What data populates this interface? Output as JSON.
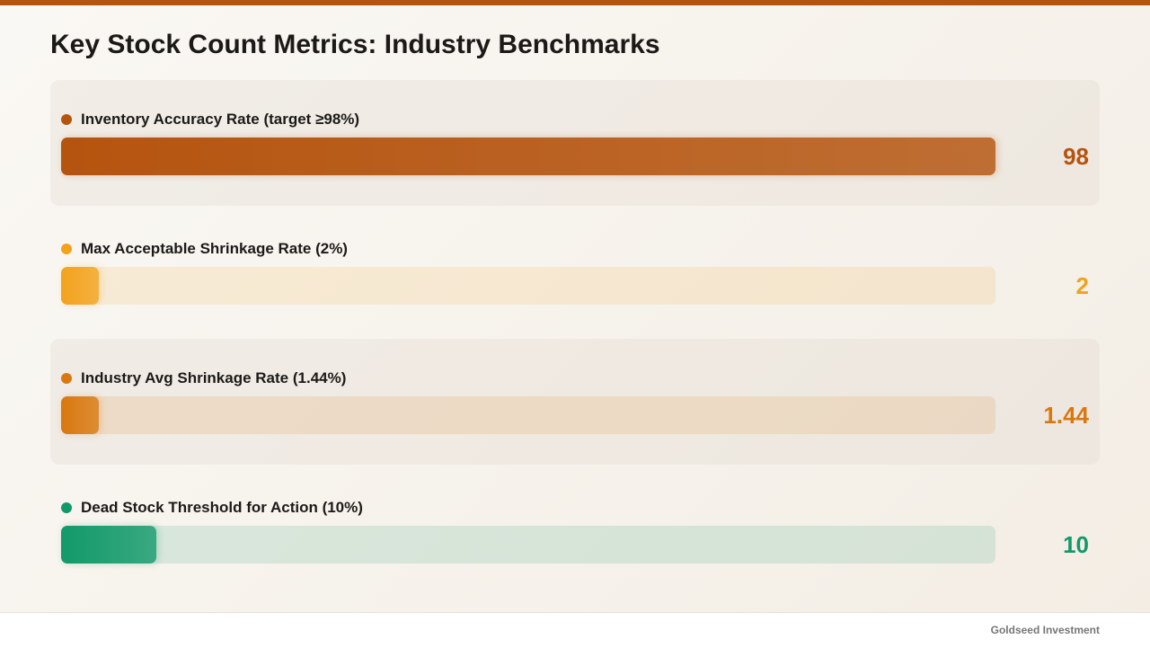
{
  "chart_data": {
    "type": "bar",
    "orientation": "horizontal",
    "title": "Key Stock Count Metrics: Industry Benchmarks",
    "categories": [
      "Inventory Accuracy Rate (target ≥98%)",
      "Max Acceptable Shrinkage Rate (2%)",
      "Industry Avg Shrinkage Rate (1.44%)",
      "Dead Stock Threshold for Action (10%)"
    ],
    "values": [
      98,
      2,
      1.44,
      10
    ],
    "colors": [
      "#b5540f",
      "#f3a21c",
      "#d9780f",
      "#12996a"
    ]
  },
  "footer": "Goldseed Investment"
}
